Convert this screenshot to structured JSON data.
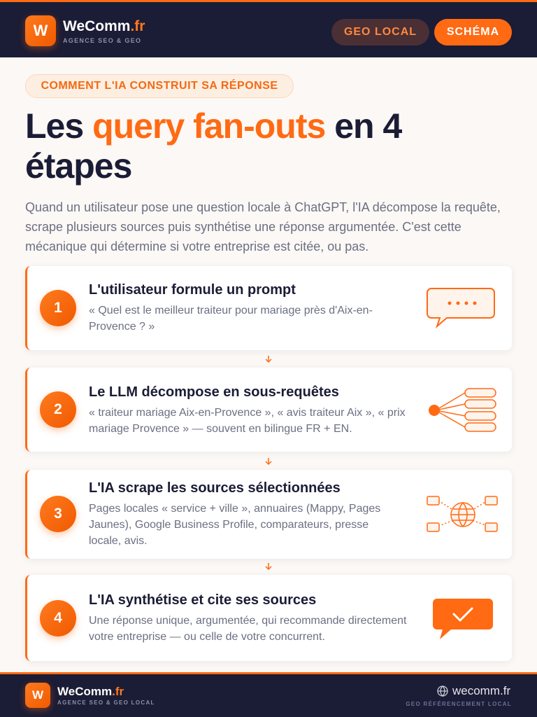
{
  "header": {
    "logo": "W",
    "brand": "WeComm",
    "brand_suffix": ".fr",
    "tagline": "AGENCE SEO & GEO",
    "buttons": [
      "GEO LOCAL",
      "SCHÉMA"
    ]
  },
  "badge": "COMMENT L'IA CONSTRUIT SA RÉPONSE",
  "title": {
    "before": "Les ",
    "highlight": "query fan-outs",
    "after": " en 4 étapes"
  },
  "intro": "Quand un utilisateur pose une question locale à ChatGPT, l'IA décompose la requête, scrape plusieurs sources puis synthétise une réponse argumentée. C'est cette mécanique qui détermine si votre entreprise est citée, ou pas.",
  "steps": [
    {
      "number": "1",
      "title": "L'utilisateur formule un prompt",
      "text": "« Quel est le meilleur traiteur pour mariage près d'Aix-en-Provence ? »"
    },
    {
      "number": "2",
      "title": "Le LLM décompose en sous-requêtes",
      "text": "« traiteur mariage Aix-en-Provence », « avis traiteur Aix », « prix mariage Provence » — souvent en bilingue FR + EN."
    },
    {
      "number": "3",
      "title": "L'IA scrape les sources sélectionnées",
      "text": "Pages locales « service + ville », annuaires (Mappy, Pages Jaunes), Google Business Profile, comparateurs, presse locale, avis."
    },
    {
      "number": "4",
      "title": "L'IA synthétise et cite ses sources",
      "text": "Une réponse unique, argumentée, qui recommande directement votre entreprise — ou celle de votre concurrent."
    }
  ],
  "footer": {
    "logo": "W",
    "brand": "WeComm",
    "brand_suffix": ".fr",
    "tagline": "AGENCE SEO & GEO LOCAL",
    "url": "wecomm.fr",
    "subline": "GEO RÉFÉRENCEMENT LOCAL"
  }
}
